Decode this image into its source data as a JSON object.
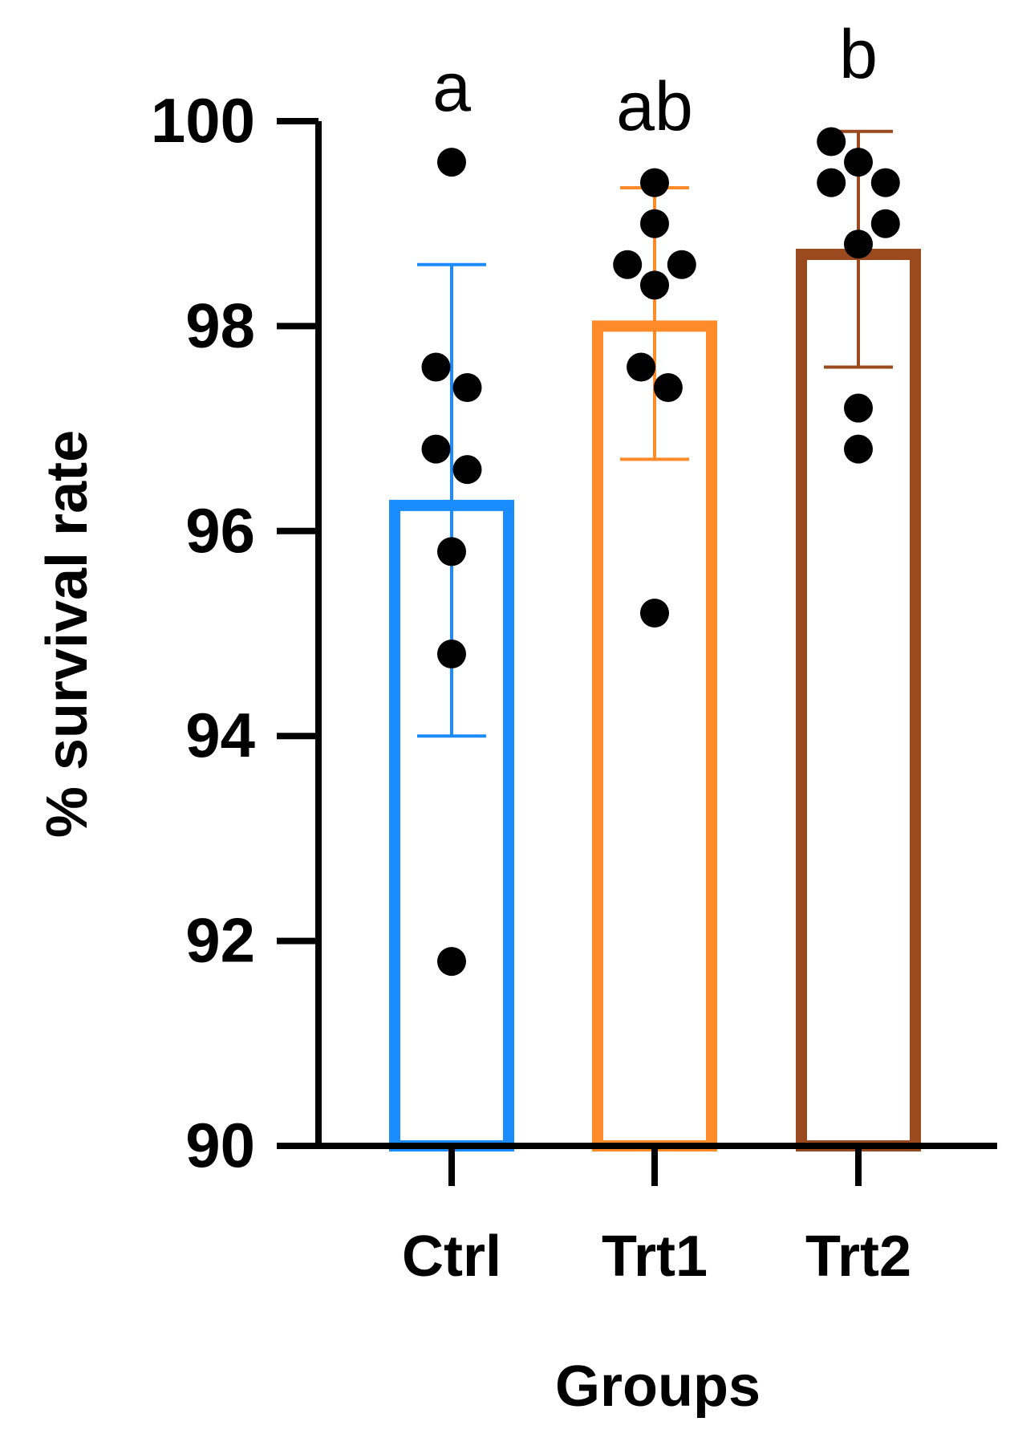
{
  "chart_data": {
    "type": "bar",
    "title": "",
    "xlabel": "Groups",
    "ylabel": "% survival rate",
    "ylim": [
      90,
      100
    ],
    "yticks": [
      "90",
      "92",
      "94",
      "96",
      "98",
      "100"
    ],
    "ytick_values": [
      90,
      92,
      94,
      96,
      98,
      100
    ],
    "grid": false,
    "legend": "none",
    "categories": [
      "Ctrl",
      "Trt1",
      "Trt2"
    ],
    "means": [
      96.25,
      98.0,
      98.7
    ],
    "error_upper": [
      98.6,
      99.35,
      99.9
    ],
    "error_lower": [
      94.0,
      96.7,
      97.6
    ],
    "significance": [
      "a",
      "ab",
      "b"
    ],
    "colors": [
      "#1a8cff",
      "#ff8a2a",
      "#9a4a1e"
    ],
    "points": [
      [
        {
          "x": 0.0,
          "y": 99.6
        },
        {
          "x": -0.15,
          "y": 97.6
        },
        {
          "x": 0.15,
          "y": 97.4
        },
        {
          "x": -0.15,
          "y": 96.8
        },
        {
          "x": 0.15,
          "y": 96.6
        },
        {
          "x": 0.0,
          "y": 95.8
        },
        {
          "x": 0.0,
          "y": 94.8
        },
        {
          "x": 0.0,
          "y": 91.8
        }
      ],
      [
        {
          "x": 0.0,
          "y": 99.4
        },
        {
          "x": 0.0,
          "y": 99.0
        },
        {
          "x": -0.26,
          "y": 98.6
        },
        {
          "x": 0.26,
          "y": 98.6
        },
        {
          "x": 0.0,
          "y": 98.4
        },
        {
          "x": -0.13,
          "y": 97.6
        },
        {
          "x": 0.13,
          "y": 97.4
        },
        {
          "x": 0.0,
          "y": 95.2
        }
      ],
      [
        {
          "x": -0.26,
          "y": 99.8
        },
        {
          "x": 0.0,
          "y": 99.6
        },
        {
          "x": -0.26,
          "y": 99.4
        },
        {
          "x": 0.26,
          "y": 99.4
        },
        {
          "x": 0.26,
          "y": 99.0
        },
        {
          "x": 0.0,
          "y": 98.8
        },
        {
          "x": 0.0,
          "y": 97.2
        },
        {
          "x": 0.0,
          "y": 96.8
        }
      ]
    ]
  }
}
